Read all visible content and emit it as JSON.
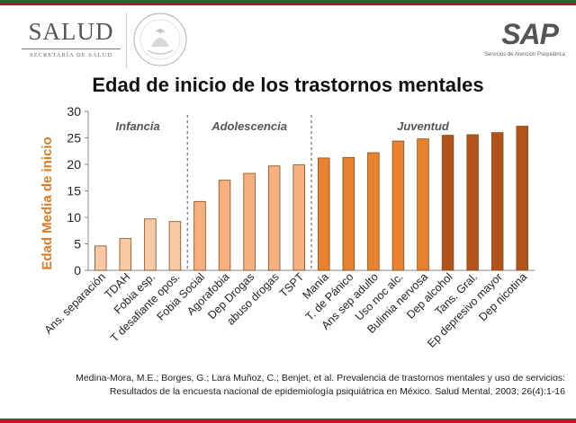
{
  "header": {
    "left_logo": {
      "title": "SALUD",
      "subtitle": "SECRETARÍA DE SALUD",
      "seal_icon": "mexican-coat-of-arms-icon"
    },
    "right_logo": {
      "title": "SAP",
      "subtitle": "Servicios de Atención Psiquiátrica"
    },
    "colors": {
      "green": "#1e6b2e",
      "red": "#c8102e"
    }
  },
  "chart_data": {
    "type": "bar",
    "title": "Edad de inicio de los trastornos mentales",
    "ylabel": "Edad Media de inicio",
    "xlabel": "",
    "ylim": [
      0,
      30
    ],
    "yticks": [
      0,
      5,
      10,
      15,
      20,
      25,
      30
    ],
    "grid": false,
    "categories": [
      "Ans. separación",
      "TDAH",
      "Fobia esp.",
      "T desafiante opos.",
      "Fobia Social",
      "Agorafobia",
      "Dep Drogas",
      "abuso drogas",
      "TSPT",
      "Manía",
      "T. de Pánico",
      "Ans sep adulto",
      "Uso noc alc.",
      "Bulimia nervosa",
      "Dep alcohol",
      "Tans. Gral.",
      "Ep depresivo mayor",
      "Dep nicotina"
    ],
    "values": [
      4.6,
      6.0,
      9.7,
      9.2,
      13.0,
      17.0,
      18.3,
      19.7,
      19.9,
      21.2,
      21.3,
      22.2,
      24.4,
      24.8,
      25.5,
      25.6,
      26.0,
      27.2
    ],
    "bar_colors": [
      "#f9c9a4",
      "#f9c9a4",
      "#f9c9a4",
      "#f9c9a4",
      "#f6b07f",
      "#f6b07f",
      "#f6b07f",
      "#f6b07f",
      "#f6b07f",
      "#e8822f",
      "#e8822f",
      "#e8822f",
      "#e8822f",
      "#e8822f",
      "#b1531a",
      "#b1531a",
      "#b1531a",
      "#b1531a"
    ],
    "groups": [
      {
        "label": "Infancia",
        "start": 0,
        "end": 3
      },
      {
        "label": "Adolescencia",
        "start": 4,
        "end": 8
      },
      {
        "label": "Juventud",
        "start": 9,
        "end": 17
      }
    ],
    "colors": {
      "ylabel": "#e07b22",
      "bar_edge": "#8a4a1a"
    }
  },
  "citation": {
    "line1": "Medina-Mora, M.E.; Borges, G.; Lara Muñoz, C.; Benjet,  et al. Prevalencia de trastornos mentales y uso de servicios:",
    "line2": "Resultados de la encuesta nacional de epidemiología psiquiátrica en México. Salud Mental, 2003; 26(4):1-16"
  }
}
